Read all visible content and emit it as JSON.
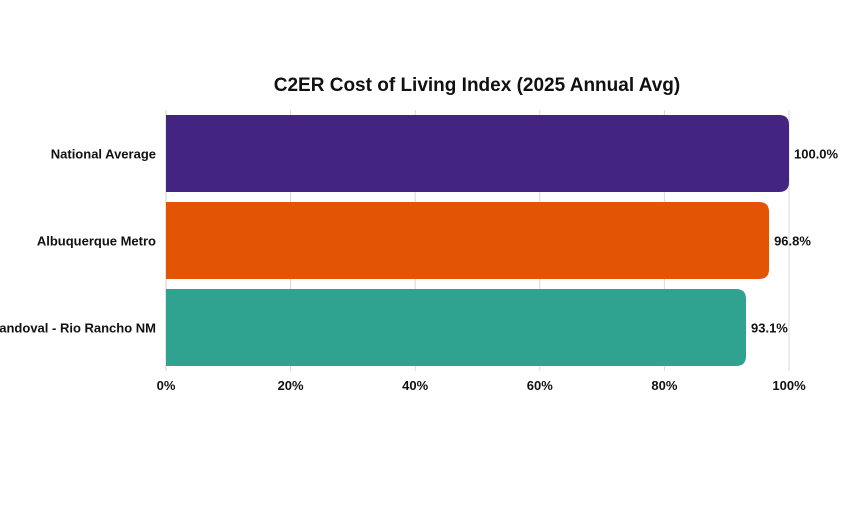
{
  "chart_data": {
    "type": "bar",
    "orientation": "horizontal",
    "title": "C2ER Cost of Living Index (2025 Annual Avg)",
    "categories": [
      "National Average",
      "Albuquerque Metro",
      "Sandoval - Rio Rancho NM"
    ],
    "values": [
      100.0,
      96.8,
      93.1
    ],
    "value_labels": [
      "100.0%",
      "96.8%",
      "93.1%"
    ],
    "colors": [
      "#432483",
      "#e35505",
      "#2fa38f"
    ],
    "xlim": [
      0,
      100
    ],
    "x_ticks": [
      0,
      20,
      40,
      60,
      80,
      100
    ],
    "x_tick_labels": [
      "0%",
      "20%",
      "40%",
      "60%",
      "80%",
      "100%"
    ],
    "xlabel": "",
    "ylabel": "",
    "grid": "vertical",
    "legend": "none"
  }
}
